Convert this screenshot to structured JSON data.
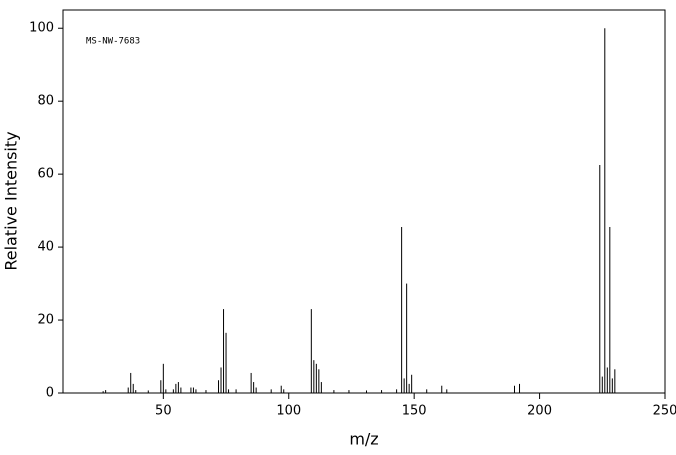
{
  "chart_data": {
    "type": "stem",
    "annotation": "MS-NW-7683",
    "x_label": "m/z",
    "y_label": "Relative Intensity",
    "color": "#000000",
    "xlim": [
      10,
      250
    ],
    "ylim": [
      0,
      105
    ],
    "xticks": [
      50,
      100,
      150,
      200,
      250
    ],
    "yticks": [
      0,
      20,
      40,
      60,
      80,
      100
    ],
    "x": [
      26,
      27,
      36,
      37,
      38,
      39,
      44,
      49,
      50,
      51,
      54,
      55,
      56,
      57,
      61,
      62,
      63,
      67,
      72,
      73,
      74,
      75,
      76,
      79,
      85,
      86,
      87,
      93,
      97,
      98,
      109,
      110,
      111,
      112,
      113,
      118,
      124,
      131,
      137,
      143,
      145,
      146,
      147,
      148,
      149,
      155,
      161,
      163,
      190,
      192,
      224,
      225,
      226,
      227,
      228,
      229,
      230
    ],
    "values": [
      0.5,
      0.8,
      1.5,
      5.5,
      2.5,
      0.8,
      0.7,
      3.5,
      8,
      1,
      1,
      2.5,
      3,
      1.5,
      1.5,
      1.5,
      1,
      0.8,
      3.5,
      7,
      23,
      16.5,
      1,
      1,
      5.5,
      3,
      1.5,
      1,
      2,
      1,
      23,
      9,
      8,
      6.5,
      3,
      0.8,
      0.8,
      0.7,
      0.8,
      1,
      45.5,
      4,
      30,
      2.5,
      5,
      1,
      2,
      1,
      2,
      2.5,
      62.5,
      4.5,
      100,
      7,
      45.5,
      4,
      6.5
    ]
  }
}
